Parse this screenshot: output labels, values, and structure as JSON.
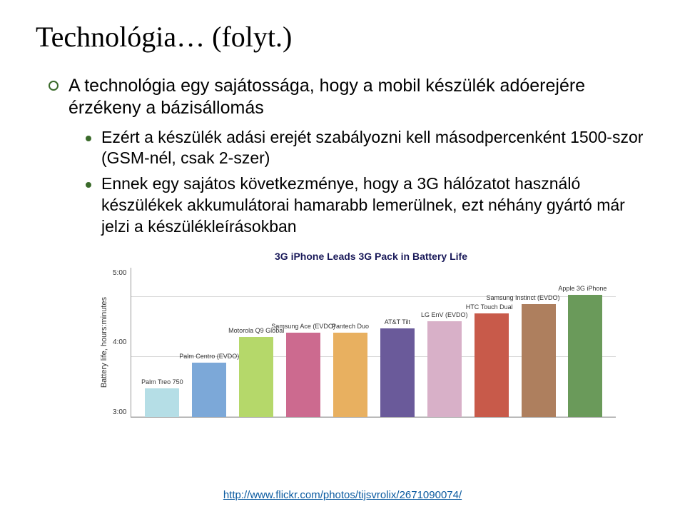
{
  "title": "Technológia… (folyt.)",
  "main_bullet": "A technológia egy sajátossága, hogy a mobil készülék adóerejére érzékeny a bázisállomás",
  "sub_bullets": [
    "Ezért a készülék adási erejét szabályozni kell másodpercenként 1500-szor (GSM-nél, csak 2-szer)",
    "Ennek egy sajátos következménye, hogy a 3G hálózatot használó készülékek akkumulátorai hamarabb lemerülnek, ezt néhány gyártó már jelzi a készülékleírásokban"
  ],
  "chart": {
    "title": "3G iPhone Leads 3G Pack in Battery Life",
    "y_label": "Battery life, hours:minutes",
    "y_ticks": [
      "5:00",
      "4:00",
      "3:00"
    ],
    "y_min": 3.0,
    "y_max": 5.5,
    "grid_color": "#d8d8d8",
    "background": "#ffffff",
    "bars": [
      {
        "label": "Palm Treo 750",
        "value": 3.47,
        "color": "#b5dee6"
      },
      {
        "label": "Palm Centro (EVDO)",
        "value": 3.9,
        "color": "#7ca8d8"
      },
      {
        "label": "Motorola Q9 Global",
        "value": 4.33,
        "color": "#b5d86a"
      },
      {
        "label": "Samsung Ace (EVDO)",
        "value": 4.4,
        "color": "#cc6a8f"
      },
      {
        "label": "Pantech Duo",
        "value": 4.4,
        "color": "#e8b060"
      },
      {
        "label": "AT&T Tilt",
        "value": 4.47,
        "color": "#6a5a9a"
      },
      {
        "label": "LG EnV (EVDO)",
        "value": 4.6,
        "color": "#d8b0c8"
      },
      {
        "label": "HTC Touch Dual",
        "value": 4.72,
        "color": "#c85a4a"
      },
      {
        "label": "Samsung Instinct (EVDO)",
        "value": 4.88,
        "color": "#ae7f5e"
      },
      {
        "label": "Apple 3G iPhone",
        "value": 5.03,
        "color": "#6a9a5a"
      }
    ]
  },
  "link": "http://www.flickr.com/photos/tijsvrolix/2671090074/"
}
